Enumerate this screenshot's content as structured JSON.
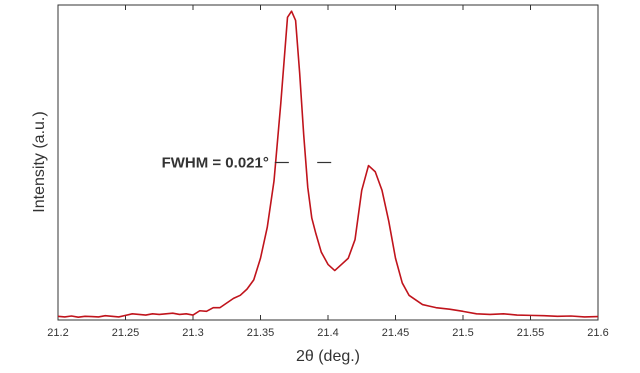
{
  "chart_data": {
    "type": "line",
    "title": "",
    "xlabel": "2θ (deg.)",
    "ylabel": "Intensity (a.u.)",
    "xlim": [
      21.2,
      21.6
    ],
    "ylim": [
      0,
      1.02
    ],
    "xticks": [
      21.2,
      21.25,
      21.3,
      21.35,
      21.4,
      21.45,
      21.5,
      21.55,
      21.6
    ],
    "xtick_labels": [
      "21.2",
      "21.25",
      "21.3",
      "21.35",
      "21.4",
      "21.45",
      "21.5",
      "21.55",
      "21.6"
    ],
    "yticks_shown": false,
    "grid": false,
    "line_color": "#c0141c",
    "series": [
      {
        "x": [
          21.2,
          21.205,
          21.21,
          21.215,
          21.22,
          21.225,
          21.23,
          21.235,
          21.24,
          21.245,
          21.25,
          21.255,
          21.26,
          21.265,
          21.27,
          21.275,
          21.28,
          21.285,
          21.29,
          21.295,
          21.3,
          21.305,
          21.31,
          21.315,
          21.32,
          21.325,
          21.33,
          21.335,
          21.34,
          21.345,
          21.35,
          21.355,
          21.36,
          21.365,
          21.37,
          21.373,
          21.376,
          21.379,
          21.382,
          21.385,
          21.388,
          21.391,
          21.395,
          21.4,
          21.405,
          21.41,
          21.415,
          21.42,
          21.425,
          21.43,
          21.435,
          21.44,
          21.445,
          21.45,
          21.455,
          21.46,
          21.465,
          21.47,
          21.475,
          21.48,
          21.49,
          21.5,
          21.51,
          21.52,
          21.53,
          21.54,
          21.55,
          21.56,
          21.57,
          21.58,
          21.59,
          21.6
        ],
        "y": [
          0.012,
          0.01,
          0.013,
          0.009,
          0.012,
          0.011,
          0.01,
          0.014,
          0.012,
          0.01,
          0.015,
          0.02,
          0.018,
          0.016,
          0.02,
          0.018,
          0.02,
          0.022,
          0.018,
          0.02,
          0.016,
          0.03,
          0.028,
          0.04,
          0.04,
          0.055,
          0.07,
          0.08,
          0.1,
          0.13,
          0.2,
          0.3,
          0.45,
          0.7,
          0.98,
          1.0,
          0.97,
          0.8,
          0.6,
          0.43,
          0.33,
          0.28,
          0.22,
          0.18,
          0.16,
          0.18,
          0.2,
          0.26,
          0.42,
          0.5,
          0.48,
          0.42,
          0.32,
          0.2,
          0.12,
          0.08,
          0.065,
          0.05,
          0.045,
          0.04,
          0.035,
          0.028,
          0.02,
          0.018,
          0.02,
          0.016,
          0.015,
          0.014,
          0.012,
          0.013,
          0.01,
          0.011
        ]
      }
    ],
    "annotations": [
      {
        "text": "FWHM = 0.021°",
        "x_start": 21.371,
        "x_end": 21.392,
        "y": 0.51
      }
    ]
  }
}
